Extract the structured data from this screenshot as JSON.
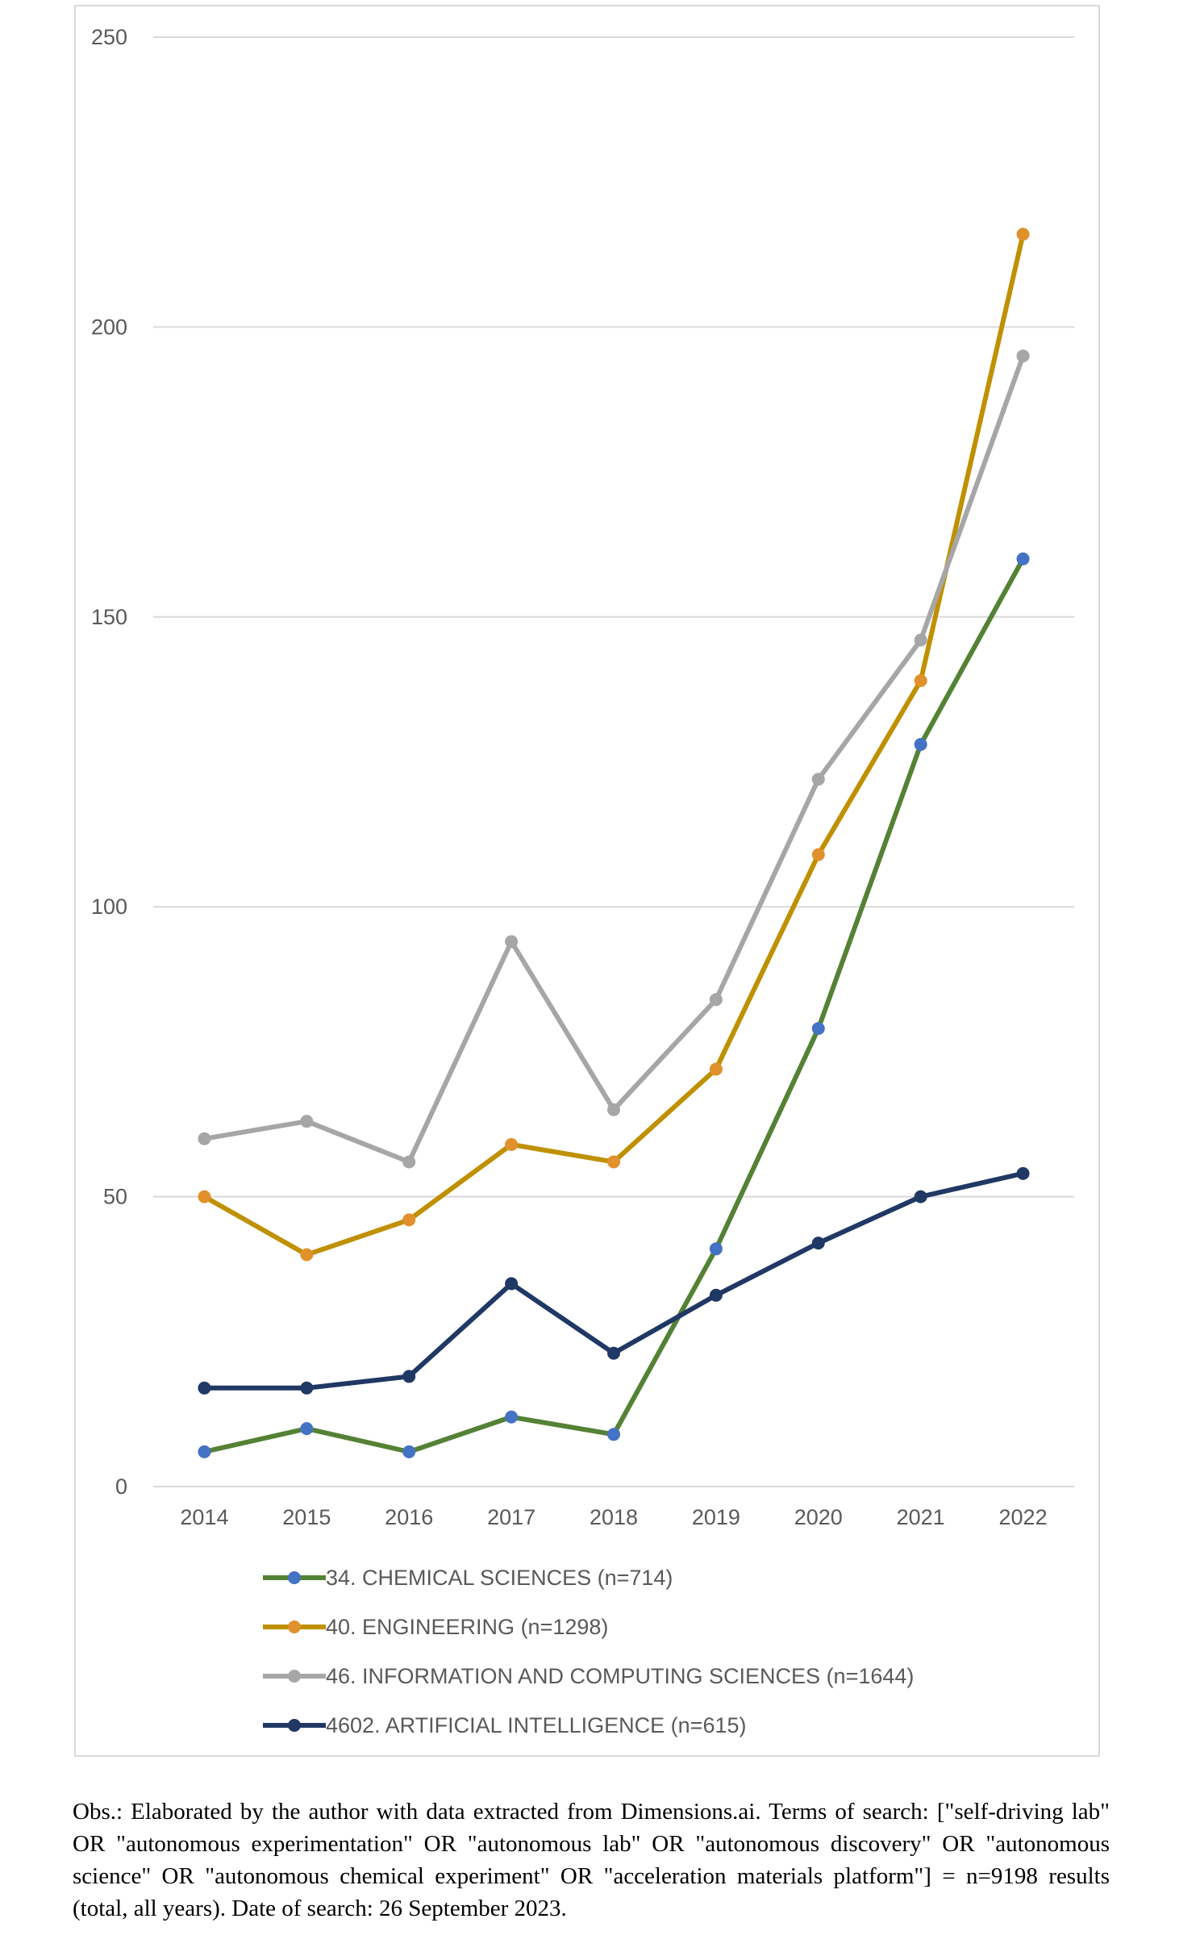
{
  "chart_data": {
    "type": "line",
    "categories": [
      "2014",
      "2015",
      "2016",
      "2017",
      "2018",
      "2019",
      "2020",
      "2021",
      "2022"
    ],
    "ylim": [
      0,
      250
    ],
    "yticks": [
      0,
      50,
      100,
      150,
      200,
      250
    ],
    "grid": true,
    "legend_position": "bottom",
    "series": [
      {
        "name": "34. CHEMICAL SCIENCES (n=714)",
        "color": "#548235",
        "marker_color": "#4472c4",
        "values": [
          6,
          10,
          6,
          12,
          9,
          41,
          79,
          128,
          160
        ]
      },
      {
        "name": "40. ENGINEERING (n=1298)",
        "color": "#bf9000",
        "marker_color": "#e0912c",
        "values": [
          50,
          40,
          46,
          59,
          56,
          72,
          109,
          139,
          216
        ]
      },
      {
        "name": "46. INFORMATION AND COMPUTING SCIENCES (n=1644)",
        "color": "#a6a6a6",
        "marker_color": "#a6a6a6",
        "values": [
          60,
          63,
          56,
          94,
          65,
          84,
          122,
          146,
          195
        ]
      },
      {
        "name": "4602. ARTIFICIAL INTELLIGENCE (n=615)",
        "color": "#203864",
        "marker_color": "#203864",
        "values": [
          17,
          17,
          19,
          35,
          23,
          33,
          42,
          50,
          54
        ]
      }
    ]
  },
  "note": "Obs.: Elaborated by the author with data extracted from Dimensions.ai. Terms of search: [\"self-driving lab\" OR \"autonomous experimentation\" OR \"autonomous lab\" OR \"autonomous discovery\" OR \"autonomous science\" OR \"autonomous chemical experiment\" OR \"acceleration materials platform\"] = n=9198 results (total, all years). Date of search: 26 September 2023."
}
